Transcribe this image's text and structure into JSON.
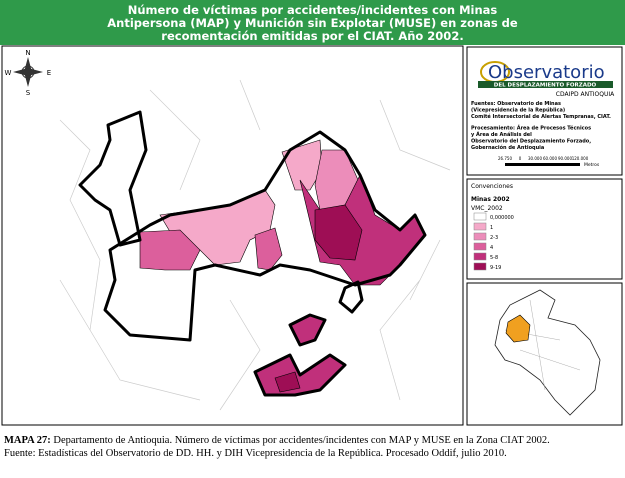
{
  "header": {
    "title_lines": [
      "Número de víctimas por accidentes/incidentes con Minas",
      "Antipersona (MAP) y Munición sin Explotar (MUSE) en zonas de",
      "recomentación emitidas por el CIAT. Año 2002."
    ]
  },
  "compass": {
    "n": "N",
    "s": "S",
    "e": "E",
    "w": "W"
  },
  "logo": {
    "name": "Observatorio",
    "band": "DEL DESPLAZAMIENTO FORZADO",
    "sub": "CDAIPD ANTIOQUIA"
  },
  "sources": [
    "Fuentes: Observatorio de Minas",
    "(Vicepresidencia de la República)",
    "Comité Intersectorial de Alertas Tempranas, CIAT.",
    "Procesamiento: Área de Procesos Técnicos",
    "y Área de Análisis del",
    "Observatorio del Desplazamiento Forzado,",
    "Gobernación de Antioquia"
  ],
  "scale": {
    "labels": [
      "26.750",
      "0",
      "30.000",
      "60.000",
      "90.000",
      "120.000"
    ],
    "unit": "Metros"
  },
  "legend": {
    "title": "Convenciones",
    "layer": "Minas 2002",
    "field": "VMC_2002",
    "items": [
      {
        "label": "0,000000",
        "color": "#ffffff"
      },
      {
        "label": "1",
        "color": "#f5a9c9"
      },
      {
        "label": "2-3",
        "color": "#ec8dba"
      },
      {
        "label": "4",
        "color": "#dc5f9c"
      },
      {
        "label": "5-8",
        "color": "#c0307b"
      },
      {
        "label": "9-19",
        "color": "#9e0e55"
      }
    ]
  },
  "caption": {
    "lead": "MAPA 27:",
    "text": " Departamento de Antioquia. Número de víctimas por accidentes/incidentes con MAP y MUSE en la Zona CIAT 2002. Fuente: Estadísticas del Observatorio de DD. HH. y DIH Vicepresidencia de la República. Procesado Oddif, julio 2010."
  }
}
